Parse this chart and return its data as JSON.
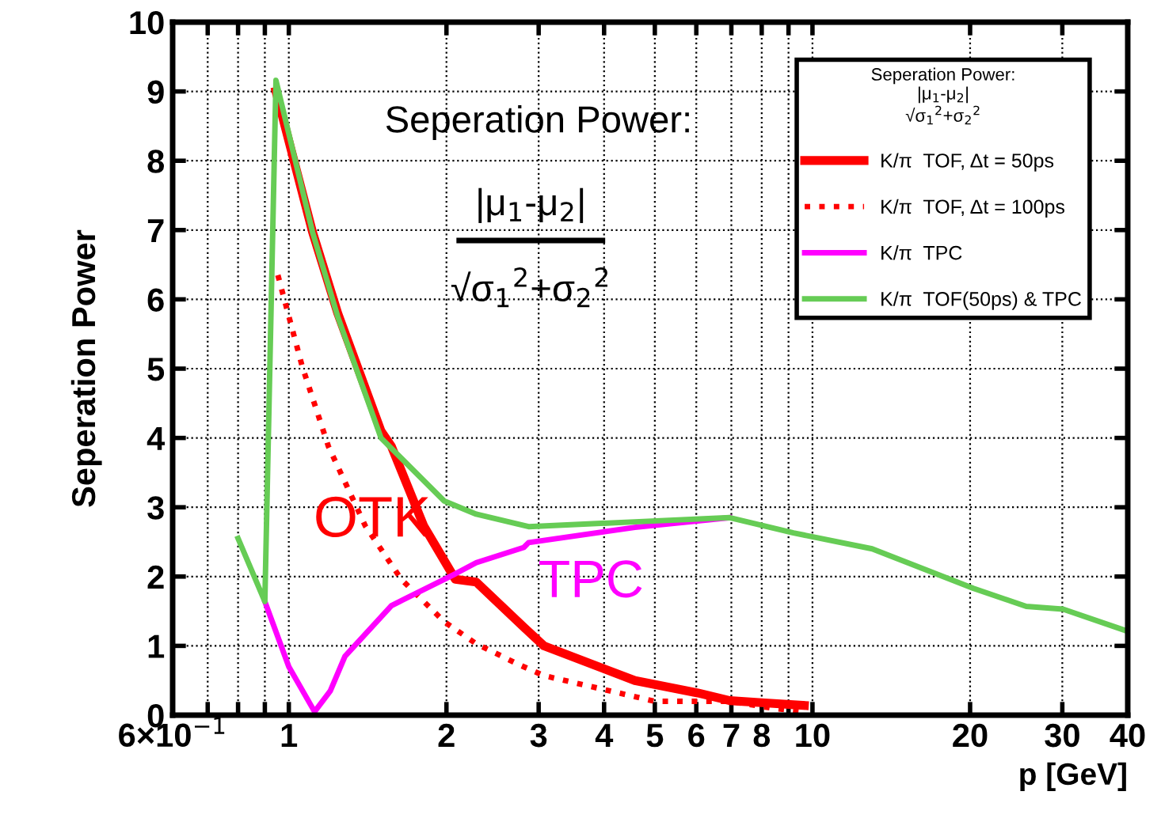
{
  "chart_data": {
    "type": "line",
    "xlabel": "p [GeV]",
    "ylabel": "Seperation Power",
    "log": "x",
    "xlim": [
      0.6,
      40
    ],
    "ylim": [
      0,
      10
    ],
    "xticks": [
      {
        "value": 0.6,
        "label": "6×10$^{−1}$"
      },
      {
        "value": 0.7,
        "label": null
      },
      {
        "value": 0.8,
        "label": null
      },
      {
        "value": 0.9,
        "label": null
      },
      1,
      2,
      3,
      4,
      5,
      6,
      7,
      8,
      {
        "value": 9,
        "label": null
      },
      10,
      20,
      30,
      40
    ],
    "yticks": [
      0,
      1,
      2,
      3,
      4,
      5,
      6,
      7,
      8,
      9,
      10
    ],
    "grid": true,
    "legend": "top right",
    "legend_title": "Seperation Power:\n|μ$_{1}$-μ$_{2}$|\n√σ$_{1}$$^{2}$+σ$_{2}$$^{2}$",
    "annotations": [
      "Seperation Power:",
      "|μ$_{1}$-μ$_{2}$|",
      "√σ$_{1}$$^{2}$+σ$_{2}$$^{2}$",
      "OTK",
      "TPC"
    ],
    "series": [
      {
        "name": "K/π  TOF, Δt = 50ps",
        "color": "#ff0000",
        "line_style": "solid",
        "x": [
          0.945,
          1.11,
          1.24,
          1.5,
          1.57,
          1.81,
          2.08,
          2.28,
          2.81,
          3.07,
          4.58,
          6.04,
          6.95,
          8.0,
          9.65
        ],
        "values": [
          9.0,
          6.97,
          5.8,
          4.1,
          3.88,
          2.73,
          1.96,
          1.92,
          1.27,
          1.0,
          0.5,
          0.32,
          0.21,
          0.18,
          0.14
        ]
      },
      {
        "name": "K/π  TOF, Δt = 100ps",
        "color": "#ff0000",
        "line_style": "dotted",
        "x": [
          0.953,
          1.06,
          1.19,
          1.4,
          1.64,
          1.98,
          2.28,
          2.75,
          3.07,
          5.0,
          6.95,
          8.4,
          9.65
        ],
        "values": [
          6.35,
          5.04,
          3.88,
          2.73,
          1.96,
          1.35,
          1.03,
          0.73,
          0.57,
          0.2,
          0.2,
          0.1,
          0.05
        ]
      },
      {
        "name": "K/π  TPC",
        "color": "#ff00ff",
        "line_style": "solid",
        "x": [
          0.9,
          1.0,
          1.12,
          1.2,
          1.28,
          1.57,
          2.08,
          2.28,
          2.81,
          2.87,
          4.58,
          6.95
        ],
        "values": [
          1.64,
          0.7,
          0.05,
          0.35,
          0.85,
          1.58,
          2.04,
          2.2,
          2.42,
          2.49,
          2.71,
          2.85
        ]
      },
      {
        "name": "K/π  TOF(50ps) & TPC",
        "color": "#66cc55",
        "line_style": "solid",
        "x": [
          0.8,
          0.9,
          0.945,
          1.11,
          1.24,
          1.5,
          1.98,
          2.28,
          2.87,
          4.58,
          6.95,
          9.2,
          13.0,
          20.3,
          25.6,
          30.1,
          40
        ],
        "values": [
          2.55,
          1.64,
          9.16,
          6.97,
          5.75,
          4.0,
          3.09,
          2.9,
          2.72,
          2.79,
          2.85,
          2.63,
          2.4,
          1.83,
          1.57,
          1.53,
          1.21
        ]
      }
    ]
  }
}
